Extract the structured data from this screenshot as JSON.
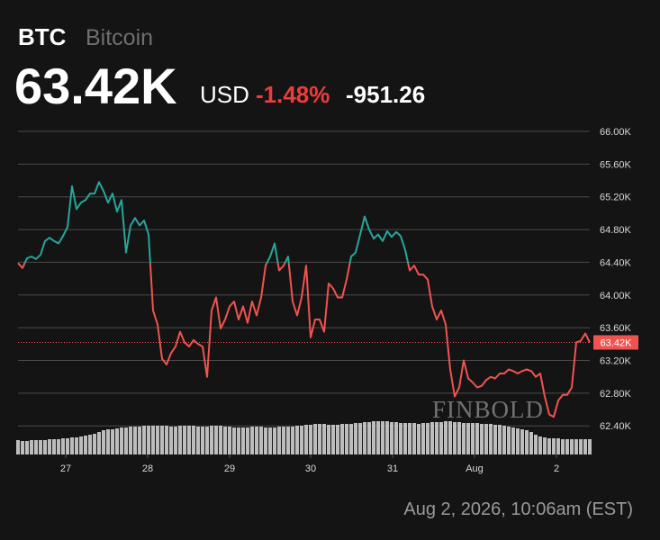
{
  "chart_data": {
    "type": "line",
    "symbol": "BTC",
    "name": "Bitcoin",
    "price": "63.42K",
    "currency": "USD",
    "change_percent": "-1.48%",
    "change": "-951.26",
    "timestamp": "Aug 2, 2026, 10:06am (EST)",
    "watermark": "FINBOLD",
    "values": [
      64390,
      64330,
      64450,
      64470,
      64440,
      64490,
      64660,
      64700,
      64660,
      64630,
      64720,
      64830,
      65330,
      65050,
      65130,
      65160,
      65240,
      65240,
      65380,
      65270,
      65130,
      65240,
      65020,
      65160,
      64520,
      64850,
      64940,
      64850,
      64910,
      64740,
      63810,
      63640,
      63220,
      63150,
      63290,
      63370,
      63550,
      63420,
      63370,
      63450,
      63400,
      63370,
      63000,
      63810,
      63970,
      63590,
      63700,
      63860,
      63920,
      63700,
      63860,
      63660,
      63920,
      63750,
      63970,
      64360,
      64470,
      64630,
      64300,
      64360,
      64470,
      63920,
      63750,
      63970,
      64360,
      63480,
      63700,
      63700,
      63550,
      64140,
      64080,
      63970,
      63970,
      64190,
      64470,
      64520,
      64740,
      64960,
      64800,
      64690,
      64740,
      64660,
      64780,
      64710,
      64770,
      64720,
      64550,
      64300,
      64360,
      64250,
      64250,
      64190,
      63860,
      63700,
      63810,
      63640,
      63090,
      62760,
      62870,
      63200,
      62980,
      62930,
      62870,
      62890,
      62960,
      63000,
      62980,
      63040,
      63040,
      63090,
      63070,
      63040,
      63070,
      63090,
      63070,
      63000,
      63040,
      62760,
      62540,
      62510,
      62710,
      62780,
      62780,
      62870,
      63420,
      63440,
      63530,
      63420
    ],
    "volume": [
      16,
      15,
      15,
      16,
      16,
      16,
      16,
      17,
      17,
      17,
      18,
      18,
      19,
      19,
      20,
      21,
      22,
      23,
      25,
      27,
      28,
      28,
      29,
      30,
      30,
      31,
      31,
      31,
      32,
      32,
      32,
      32,
      32,
      32,
      31,
      31,
      32,
      32,
      32,
      32,
      31,
      31,
      31,
      32,
      32,
      32,
      31,
      31,
      30,
      30,
      30,
      30,
      31,
      31,
      31,
      30,
      30,
      30,
      31,
      31,
      31,
      31,
      32,
      32,
      33,
      33,
      34,
      34,
      34,
      33,
      33,
      33,
      34,
      34,
      34,
      35,
      35,
      36,
      36,
      37,
      37,
      37,
      37,
      36,
      36,
      35,
      35,
      35,
      35,
      34,
      35,
      35,
      36,
      36,
      36,
      37,
      37,
      36,
      36,
      35,
      35,
      35,
      35,
      34,
      34,
      34,
      33,
      33,
      32,
      31,
      30,
      29,
      28,
      27,
      25,
      22,
      20,
      19,
      18,
      18,
      18,
      17,
      17,
      17,
      17,
      17,
      17,
      17
    ],
    "up_color": "#26a69a",
    "down_color": "#ef5350",
    "volume_color": "#cfcfcf",
    "xlim": [
      0,
      127
    ],
    "xticks": [
      {
        "value": 10.6,
        "label": "27"
      },
      {
        "value": 28.8,
        "label": "28"
      },
      {
        "value": 47,
        "label": "29"
      },
      {
        "value": 65,
        "label": "30"
      },
      {
        "value": 83.2,
        "label": "31"
      },
      {
        "value": 101.4,
        "label": "Aug"
      },
      {
        "value": 119.6,
        "label": "2"
      }
    ],
    "ylim": [
      62050,
      66000
    ],
    "yticks": [
      {
        "value": 62400,
        "label": "62.40K"
      },
      {
        "value": 62800,
        "label": "62.80K"
      },
      {
        "value": 63200,
        "label": "63.20K"
      },
      {
        "value": 63600,
        "label": "63.60K"
      },
      {
        "value": 64000,
        "label": "64.00K"
      },
      {
        "value": 64400,
        "label": "64.40K"
      },
      {
        "value": 64800,
        "label": "64.80K"
      },
      {
        "value": 65200,
        "label": "65.20K"
      },
      {
        "value": 65600,
        "label": "65.60K"
      },
      {
        "value": 66000,
        "label": "66.00K"
      }
    ],
    "last_price": {
      "value": 63420,
      "label": "63.42K"
    },
    "grid": true
  }
}
